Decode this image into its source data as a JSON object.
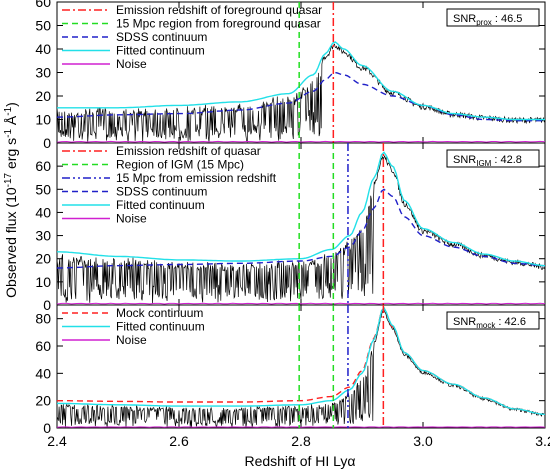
{
  "chart_data": {
    "type": "line",
    "xlabel": "Redshift of HI Lyα",
    "ylabel": "Observed flux (10",
    "ylabel_sup": "-17",
    "ylabel_rest": " erg s",
    "ylabel_sup2": "-1",
    "ylabel_rest2": " Å",
    "ylabel_sup3": "-1",
    "ylabel_end": ")",
    "xlim": [
      2.4,
      3.2
    ],
    "xticks": [
      "2.4",
      "2.6",
      "2.8",
      "3.0",
      "3.2"
    ],
    "colors": {
      "observed": "#000000",
      "emission_redshift": "#ff2020",
      "region": "#22dd22",
      "proximity": "#2020c8",
      "sdss": "#2020c8",
      "fitted": "#22e0e8",
      "noise": "#d020d0",
      "mock": "#ff2020"
    },
    "panels": [
      {
        "ylim": [
          0,
          60
        ],
        "yticks": [
          "0",
          "10",
          "20",
          "30",
          "40",
          "50",
          "60"
        ],
        "snr_base": "SNR",
        "snr_sub": "prox",
        "snr_value": " : 46.5",
        "legend": [
          {
            "label": "Emission redshift of foreground quasar",
            "style": "dashdot",
            "color": "#ff2020"
          },
          {
            "label": "15 Mpc region from foreground quasar",
            "style": "dash",
            "color": "#22dd22"
          },
          {
            "label": "SDSS continuum",
            "style": "dash",
            "color": "#2020c8"
          },
          {
            "label": "Fitted continuum",
            "style": "solid",
            "color": "#22e0e8"
          },
          {
            "label": "Noise",
            "style": "solid",
            "color": "#d020d0"
          }
        ],
        "vlines": [
          {
            "x": 2.797,
            "color": "#22dd22",
            "style": "dash"
          },
          {
            "x": 2.853,
            "color": "#ff2020",
            "style": "dashdot"
          }
        ],
        "emission_z": 2.85,
        "peak": 43,
        "fitted_continuum": {
          "x": [
            2.4,
            2.5,
            2.6,
            2.7,
            2.78,
            2.82,
            2.84,
            2.855,
            2.87,
            2.9,
            2.95,
            3.0,
            3.05,
            3.1,
            3.15,
            3.2
          ],
          "y": [
            15,
            15,
            16,
            17.5,
            21,
            29,
            38,
            43,
            40,
            33,
            22,
            16,
            12.5,
            11,
            10,
            10
          ]
        },
        "sdss_continuum": {
          "x": [
            2.4,
            2.5,
            2.6,
            2.7,
            2.78,
            2.82,
            2.84,
            2.855,
            2.87,
            2.9,
            2.95,
            3.0,
            3.05,
            3.1,
            3.15,
            3.2
          ],
          "y": [
            11,
            12,
            12.5,
            14,
            17,
            22,
            27,
            30,
            29,
            25,
            20,
            16,
            12,
            10,
            9.5,
            9.5
          ]
        }
      },
      {
        "ylim": [
          0,
          70
        ],
        "yticks": [
          "0",
          "10",
          "20",
          "30",
          "40",
          "50",
          "60"
        ],
        "snr_base": "SNR",
        "snr_sub": "IGM",
        "snr_value": " : 42.8",
        "legend": [
          {
            "label": "Emission redshift of quasar",
            "style": "dashdot",
            "color": "#ff2020"
          },
          {
            "label": "Region of IGM (15 Mpc)",
            "style": "dash",
            "color": "#22dd22"
          },
          {
            "label": "15 Mpc from emission redshift",
            "style": "dashdotdot",
            "color": "#2020c8"
          },
          {
            "label": "SDSS continuum",
            "style": "dash",
            "color": "#2020c8"
          },
          {
            "label": "Fitted continuum",
            "style": "solid",
            "color": "#22e0e8"
          },
          {
            "label": "Noise",
            "style": "solid",
            "color": "#d020d0"
          }
        ],
        "vlines": [
          {
            "x": 2.797,
            "color": "#22dd22",
            "style": "dash"
          },
          {
            "x": 2.853,
            "color": "#22dd22",
            "style": "dash"
          },
          {
            "x": 2.877,
            "color": "#2020c8",
            "style": "dashdotdot"
          },
          {
            "x": 2.935,
            "color": "#ff2020",
            "style": "dashdot"
          }
        ],
        "emission_z": 2.935,
        "peak": 66,
        "fitted_continuum": {
          "x": [
            2.4,
            2.5,
            2.6,
            2.7,
            2.8,
            2.85,
            2.88,
            2.9,
            2.92,
            2.935,
            2.95,
            2.97,
            3.0,
            3.05,
            3.1,
            3.15,
            3.2
          ],
          "y": [
            23,
            21,
            19.5,
            19,
            20,
            24,
            30,
            40,
            55,
            66,
            60,
            45,
            33,
            27,
            22,
            19,
            17
          ]
        },
        "sdss_continuum": {
          "x": [
            2.4,
            2.5,
            2.6,
            2.7,
            2.8,
            2.85,
            2.88,
            2.9,
            2.92,
            2.935,
            2.95,
            2.97,
            3.0,
            3.05,
            3.1,
            3.15,
            3.2
          ],
          "y": [
            16,
            17,
            17.5,
            18,
            19,
            21,
            25,
            32,
            42,
            50,
            47,
            38,
            30,
            25,
            21,
            18,
            17
          ]
        }
      },
      {
        "ylim": [
          0,
          90
        ],
        "yticks": [
          "0",
          "20",
          "40",
          "60",
          "80"
        ],
        "snr_base": "SNR",
        "snr_sub": "mock",
        "snr_value": " : 42.6",
        "legend": [
          {
            "label": "Mock continuum",
            "style": "dash",
            "color": "#ff2020"
          },
          {
            "label": "Fitted continuum",
            "style": "solid",
            "color": "#22e0e8"
          },
          {
            "label": "Noise",
            "style": "solid",
            "color": "#d020d0"
          }
        ],
        "vlines": [
          {
            "x": 2.797,
            "color": "#22dd22",
            "style": "dash"
          },
          {
            "x": 2.853,
            "color": "#22dd22",
            "style": "dash"
          },
          {
            "x": 2.877,
            "color": "#2020c8",
            "style": "dashdotdot"
          },
          {
            "x": 2.935,
            "color": "#ff2020",
            "style": "dashdot"
          }
        ],
        "emission_z": 2.935,
        "peak": 88,
        "fitted_continuum": {
          "x": [
            2.4,
            2.5,
            2.6,
            2.7,
            2.8,
            2.85,
            2.88,
            2.9,
            2.92,
            2.935,
            2.95,
            2.97,
            3.0,
            3.05,
            3.1,
            3.15,
            3.2
          ],
          "y": [
            18,
            17,
            16,
            16,
            17,
            20,
            28,
            40,
            65,
            88,
            75,
            55,
            42,
            32,
            22,
            14,
            10
          ]
        },
        "mock_continuum": {
          "x": [
            2.4,
            2.5,
            2.6,
            2.7,
            2.8,
            2.85,
            2.88,
            2.9,
            2.92,
            2.935,
            2.95,
            2.97,
            3.0,
            3.05,
            3.1,
            3.15,
            3.2
          ],
          "y": [
            20,
            19.5,
            19,
            19,
            20,
            23,
            30,
            42,
            66,
            88,
            74,
            55,
            42,
            32,
            22,
            14,
            10
          ]
        }
      }
    ]
  }
}
